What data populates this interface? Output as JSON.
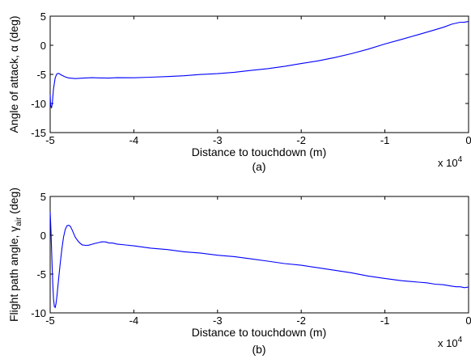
{
  "figure": {
    "line_color": "#0000ff",
    "axes_color": "#000000",
    "background": "#ffffff"
  },
  "chart_data": [
    {
      "type": "line",
      "panel_label": "(a)",
      "xlabel": "Distance to touchdown (m)",
      "ylabel": "Angle of attack, α (deg)",
      "x_exponent_label": "x 10",
      "x_exponent_power": "4",
      "xlim": [
        -50000,
        0
      ],
      "ylim": [
        -15,
        5
      ],
      "xticks": [
        -50000,
        -40000,
        -30000,
        -20000,
        -10000,
        0
      ],
      "xtick_labels": [
        "-5",
        "-4",
        "-3",
        "-2",
        "-1",
        "0"
      ],
      "yticks": [
        -15,
        -10,
        -5,
        0,
        5
      ],
      "ytick_labels": [
        "-15",
        "-10",
        "-5",
        "0",
        "5"
      ],
      "grid": false,
      "series": [
        {
          "color": "#0000ff",
          "x": [
            -50000,
            -49950,
            -49850,
            -49750,
            -49600,
            -49400,
            -49200,
            -49000,
            -48800,
            -48600,
            -48200,
            -47800,
            -47000,
            -46000,
            -45000,
            -44000,
            -43000,
            -42000,
            -40000,
            -38000,
            -36000,
            -34000,
            -32000,
            -30000,
            -28000,
            -26000,
            -24000,
            -22000,
            -20000,
            -18000,
            -16000,
            -14000,
            -12000,
            -10000,
            -8000,
            -6000,
            -4000,
            -3000,
            -2000,
            -1000,
            -500,
            0
          ],
          "y": [
            -8.5,
            -10.2,
            -10.8,
            -10.0,
            -7.5,
            -5.6,
            -4.9,
            -4.8,
            -5.0,
            -5.2,
            -5.5,
            -5.7,
            -5.8,
            -5.7,
            -5.6,
            -5.6,
            -5.6,
            -5.5,
            -5.5,
            -5.4,
            -5.3,
            -5.2,
            -5.0,
            -4.9,
            -4.7,
            -4.4,
            -4.1,
            -3.7,
            -3.2,
            -2.7,
            -2.1,
            -1.4,
            -0.6,
            0.3,
            1.1,
            1.9,
            2.7,
            3.1,
            3.6,
            3.9,
            3.9,
            4.0
          ]
        }
      ]
    },
    {
      "type": "line",
      "panel_label": "(b)",
      "xlabel": "Distance to touchdown (m)",
      "ylabel": "Flight path angle, γ",
      "ylabel_subscript": "air",
      "ylabel_suffix": " (deg)",
      "x_exponent_label": "x 10",
      "x_exponent_power": "4",
      "xlim": [
        -50000,
        0
      ],
      "ylim": [
        -10,
        5
      ],
      "xticks": [
        -50000,
        -40000,
        -30000,
        -20000,
        -10000,
        0
      ],
      "xtick_labels": [
        "-5",
        "-4",
        "-3",
        "-2",
        "-1",
        "0"
      ],
      "yticks": [
        -10,
        -5,
        0,
        5
      ],
      "ytick_labels": [
        "-10",
        "-5",
        "0",
        "5"
      ],
      "grid": false,
      "series": [
        {
          "color": "#0000ff",
          "x": [
            -50000,
            -49900,
            -49800,
            -49700,
            -49600,
            -49500,
            -49400,
            -49300,
            -49200,
            -49000,
            -48800,
            -48600,
            -48400,
            -48200,
            -48000,
            -47800,
            -47600,
            -47400,
            -47200,
            -47000,
            -46600,
            -46200,
            -45800,
            -45400,
            -45000,
            -44600,
            -44200,
            -43800,
            -43400,
            -43000,
            -42500,
            -42000,
            -41000,
            -40000,
            -38000,
            -36000,
            -34000,
            -32000,
            -30000,
            -28000,
            -26000,
            -24000,
            -22000,
            -20000,
            -18000,
            -16000,
            -14000,
            -12000,
            -10000,
            -8000,
            -6000,
            -5000,
            -4000,
            -3000,
            -2000,
            -1500,
            -1000,
            -500,
            0
          ],
          "y": [
            3.0,
            0.5,
            -3.0,
            -6.0,
            -8.2,
            -9.2,
            -9.3,
            -8.8,
            -7.9,
            -5.8,
            -3.7,
            -1.8,
            -0.3,
            0.7,
            1.2,
            1.3,
            1.2,
            0.8,
            0.3,
            -0.2,
            -0.8,
            -1.2,
            -1.3,
            -1.3,
            -1.2,
            -1.1,
            -1.0,
            -0.9,
            -0.9,
            -1.0,
            -1.0,
            -1.1,
            -1.2,
            -1.3,
            -1.6,
            -1.8,
            -2.1,
            -2.3,
            -2.6,
            -2.8,
            -3.1,
            -3.4,
            -3.7,
            -3.9,
            -4.2,
            -4.5,
            -4.8,
            -5.2,
            -5.5,
            -5.8,
            -6.0,
            -6.1,
            -6.3,
            -6.4,
            -6.6,
            -6.7,
            -6.7,
            -6.8,
            -6.7
          ]
        }
      ]
    }
  ]
}
